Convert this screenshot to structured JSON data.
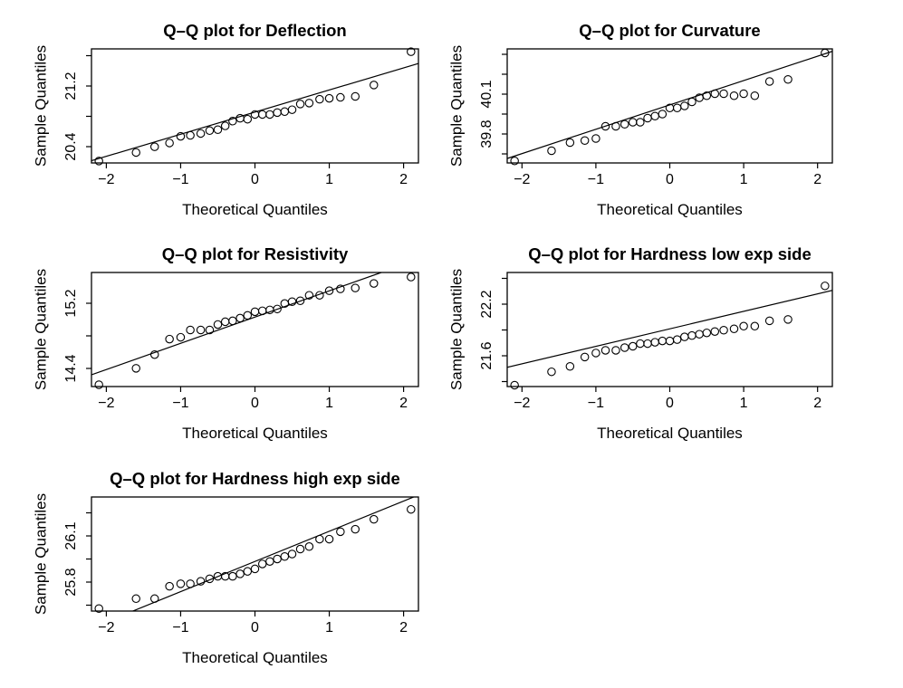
{
  "panels": [
    {
      "title": "Q–Q plot for Deflection",
      "xlabel": "Theoretical Quantiles",
      "ylabel": "Sample Quantiles",
      "xticks": [
        "−2",
        "−1",
        "0",
        "1",
        "2"
      ],
      "yticks": [
        "20.4",
        "21.2"
      ]
    },
    {
      "title": "Q–Q plot for Curvature",
      "xlabel": "Theoretical Quantiles",
      "ylabel": "Sample Quantiles",
      "xticks": [
        "−2",
        "−1",
        "0",
        "1",
        "2"
      ],
      "yticks": [
        "39.8",
        "40.1"
      ]
    },
    {
      "title": "Q–Q plot for Resistivity",
      "xlabel": "Theoretical Quantiles",
      "ylabel": "Sample Quantiles",
      "xticks": [
        "−2",
        "−1",
        "0",
        "1",
        "2"
      ],
      "yticks": [
        "14.4",
        "15.2"
      ]
    },
    {
      "title": "Q–Q plot for  Hardness low exp side",
      "xlabel": "Theoretical Quantiles",
      "ylabel": "Sample Quantiles",
      "xticks": [
        "−2",
        "−1",
        "0",
        "1",
        "2"
      ],
      "yticks": [
        "21.6",
        "22.2"
      ]
    },
    {
      "title": "Q–Q plot for Hardness high exp side",
      "xlabel": "Theoretical Quantiles",
      "ylabel": "Sample Quantiles",
      "xticks": [
        "−2",
        "−1",
        "0",
        "1",
        "2"
      ],
      "yticks": [
        "25.8",
        "26.1"
      ]
    }
  ],
  "chart_data": [
    {
      "type": "scatter",
      "title": "Q–Q plot for Deflection",
      "xlabel": "Theoretical Quantiles",
      "ylabel": "Sample Quantiles",
      "xlim": [
        -2.2,
        2.2
      ],
      "ylim": [
        20.4,
        21.6
      ],
      "reference_line": [
        [
          -2.3,
          20.4
        ],
        [
          2.3,
          21.47
        ]
      ],
      "x": [
        -2.1,
        -1.6,
        -1.35,
        -1.15,
        -1.0,
        -0.87,
        -0.73,
        -0.61,
        -0.5,
        -0.4,
        -0.3,
        -0.2,
        -0.1,
        0.0,
        0.1,
        0.2,
        0.3,
        0.4,
        0.5,
        0.61,
        0.73,
        0.87,
        1.0,
        1.15,
        1.35,
        1.6,
        2.1
      ],
      "y": [
        20.42,
        20.51,
        20.57,
        20.61,
        20.68,
        20.69,
        20.71,
        20.74,
        20.75,
        20.79,
        20.84,
        20.87,
        20.86,
        20.91,
        20.91,
        20.91,
        20.93,
        20.94,
        20.96,
        21.02,
        21.03,
        21.07,
        21.08,
        21.09,
        21.1,
        21.22,
        21.57
      ]
    },
    {
      "type": "scatter",
      "title": "Q–Q plot for Curvature",
      "xlabel": "Theoretical Quantiles",
      "ylabel": "Sample Quantiles",
      "xlim": [
        -2.2,
        2.2
      ],
      "ylim": [
        39.71,
        40.27
      ],
      "reference_line": [
        [
          -2.3,
          39.72
        ],
        [
          2.3,
          40.27
        ]
      ],
      "x": [
        -2.1,
        -1.6,
        -1.35,
        -1.15,
        -1.0,
        -0.87,
        -0.73,
        -0.61,
        -0.5,
        -0.4,
        -0.3,
        -0.2,
        -0.1,
        0.0,
        0.1,
        0.2,
        0.3,
        0.4,
        0.5,
        0.61,
        0.73,
        0.87,
        1.0,
        1.15,
        1.35,
        1.6,
        2.1
      ],
      "y": [
        39.72,
        39.77,
        39.81,
        39.82,
        39.83,
        39.89,
        39.89,
        39.9,
        39.91,
        39.91,
        39.93,
        39.94,
        39.95,
        39.98,
        39.98,
        39.99,
        40.01,
        40.03,
        40.04,
        40.05,
        40.05,
        40.04,
        40.05,
        40.04,
        40.11,
        40.12,
        40.25
      ]
    },
    {
      "type": "scatter",
      "title": "Q–Q plot for Resistivity",
      "xlabel": "Theoretical Quantiles",
      "ylabel": "Sample Quantiles",
      "xlim": [
        -2.2,
        2.2
      ],
      "ylim": [
        14.3,
        15.55
      ],
      "reference_line": [
        [
          -2.3,
          14.4
        ],
        [
          1.7,
          15.55
        ]
      ],
      "x": [
        -2.1,
        -1.6,
        -1.35,
        -1.15,
        -1.0,
        -0.87,
        -0.73,
        -0.61,
        -0.5,
        -0.4,
        -0.3,
        -0.2,
        -0.1,
        0.0,
        0.1,
        0.2,
        0.3,
        0.4,
        0.5,
        0.61,
        0.73,
        0.87,
        1.0,
        1.15,
        1.35,
        1.6,
        2.1
      ],
      "y": [
        14.32,
        14.5,
        14.65,
        14.82,
        14.84,
        14.92,
        14.92,
        14.92,
        14.98,
        15.01,
        15.02,
        15.05,
        15.08,
        15.12,
        15.13,
        15.14,
        15.15,
        15.21,
        15.23,
        15.24,
        15.3,
        15.3,
        15.35,
        15.37,
        15.38,
        15.43,
        15.5
      ]
    },
    {
      "type": "scatter",
      "title": "Q–Q plot for  Hardness low exp side",
      "xlabel": "Theoretical Quantiles",
      "ylabel": "Sample Quantiles",
      "xlim": [
        -2.2,
        2.2
      ],
      "ylim": [
        21.55,
        22.4
      ],
      "reference_line": [
        [
          -2.3,
          21.68
        ],
        [
          2.3,
          22.28
        ]
      ],
      "x": [
        -2.1,
        -1.6,
        -1.35,
        -1.15,
        -1.0,
        -0.87,
        -0.73,
        -0.61,
        -0.5,
        -0.4,
        -0.3,
        -0.2,
        -0.1,
        0.0,
        0.1,
        0.2,
        0.3,
        0.4,
        0.5,
        0.61,
        0.73,
        0.87,
        1.0,
        1.15,
        1.35,
        1.6,
        2.1
      ],
      "y": [
        21.56,
        21.66,
        21.7,
        21.77,
        21.8,
        21.82,
        21.82,
        21.84,
        21.85,
        21.87,
        21.87,
        21.88,
        21.89,
        21.89,
        21.9,
        21.92,
        21.93,
        21.94,
        21.95,
        21.96,
        21.97,
        21.98,
        22.0,
        22.0,
        22.04,
        22.05,
        22.3
      ]
    },
    {
      "type": "scatter",
      "title": "Q–Q plot for Hardness high exp side",
      "xlabel": "Theoretical Quantiles",
      "ylabel": "Sample Quantiles",
      "xlim": [
        -2.2,
        2.2
      ],
      "ylim": [
        25.74,
        26.2
      ],
      "reference_line": [
        [
          -2.3,
          25.66
        ],
        [
          2.3,
          26.22
        ]
      ],
      "x": [
        -2.1,
        -1.6,
        -1.35,
        -1.15,
        -1.0,
        -0.87,
        -0.73,
        -0.61,
        -0.5,
        -0.4,
        -0.3,
        -0.2,
        -0.1,
        0.0,
        0.1,
        0.2,
        0.3,
        0.4,
        0.5,
        0.61,
        0.73,
        0.87,
        1.0,
        1.15,
        1.35,
        1.6,
        2.1
      ],
      "y": [
        25.75,
        25.79,
        25.79,
        25.84,
        25.85,
        25.85,
        25.86,
        25.87,
        25.88,
        25.88,
        25.88,
        25.89,
        25.9,
        25.91,
        25.93,
        25.94,
        25.95,
        25.96,
        25.97,
        25.99,
        26.0,
        26.03,
        26.03,
        26.06,
        26.07,
        26.11,
        26.15
      ]
    }
  ]
}
